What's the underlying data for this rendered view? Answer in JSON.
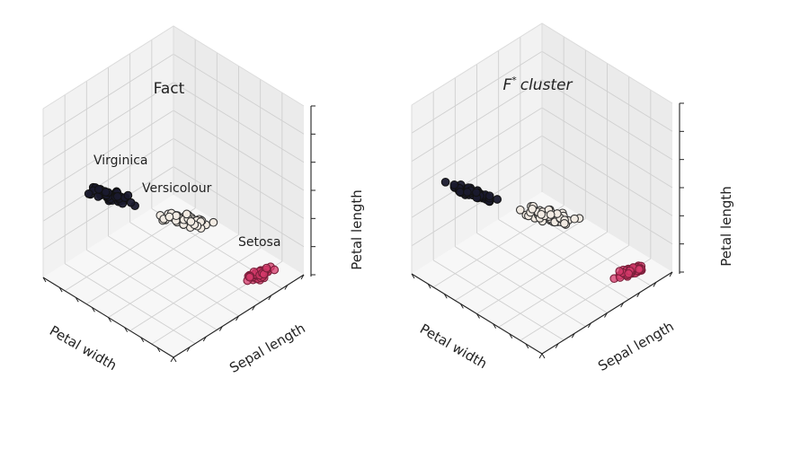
{
  "chart_data": [
    {
      "type": "scatter",
      "title": "Fact",
      "axes": {
        "x": "Petal width",
        "y": "Sepal length",
        "z": "Petal length"
      },
      "grid": true,
      "annotations": [
        "Virginica",
        "Versicolour",
        "Setosa"
      ],
      "series": [
        {
          "color": "#1a1a2e",
          "count": 50
        },
        {
          "color": "#f2ebe3",
          "count": 50
        },
        {
          "color": "#d63a6b",
          "count": 50
        }
      ]
    },
    {
      "type": "scatter",
      "title": "F* cluster",
      "title_base": "F",
      "title_sup": "*",
      "title_rest": "cluster",
      "axes": {
        "x": "Petal width",
        "y": "Sepal length",
        "z": "Petal length"
      },
      "grid": true,
      "series": [
        {
          "color": "#1a1a2e",
          "count": 50
        },
        {
          "color": "#f2ebe3",
          "count": 50
        },
        {
          "color": "#d63a6b",
          "count": 50
        }
      ]
    }
  ]
}
